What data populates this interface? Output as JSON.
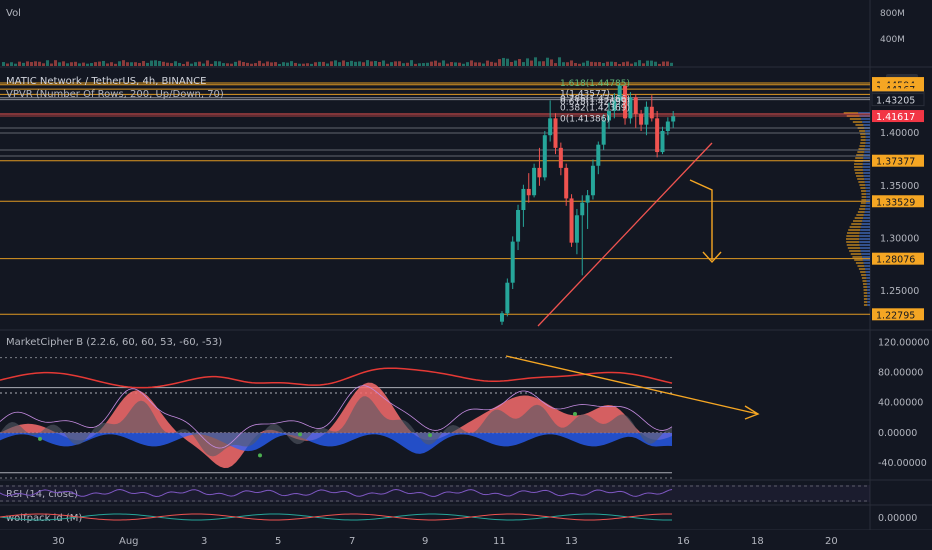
{
  "vol_pane": {
    "label": "Vol",
    "ticks": [
      "800M",
      "400M"
    ]
  },
  "main_pane": {
    "title": "MATIC Network / TetherUS, 4h, BINANCE",
    "indicator": "VPVR (Number Of Rows, 200, Up/Down, 70)",
    "currency_badge": "USDT",
    "price_ticks": [
      "1.40000",
      "1.35000",
      "1.30000",
      "1.25000"
    ],
    "price_tags": [
      {
        "text": "1.44753",
        "price": 1.4475,
        "color": "#f5a623",
        "text_color": "#131722"
      },
      {
        "text": "1.44594",
        "price": 1.4459,
        "color": "#f5a623",
        "text_color": "#131722"
      },
      {
        "text": "1.44167",
        "price": 1.4417,
        "color": "#f5a623",
        "text_color": "#131722"
      },
      {
        "text": "1.43696",
        "price": 1.4368,
        "color": "#f5a623",
        "text_color": "#131722"
      },
      {
        "text": "1.43367",
        "price": 1.4335,
        "color": "#131722",
        "text_color": "#d1d4dc"
      },
      {
        "text": "1.43205",
        "price": 1.4318,
        "color": "#131722",
        "text_color": "#d1d4dc"
      },
      {
        "text": "1.41617",
        "price": 1.4162,
        "color": "#f23645",
        "text_color": "#ffffff"
      },
      {
        "text": "1.37377",
        "price": 1.3738,
        "color": "#f5a623",
        "text_color": "#131722"
      },
      {
        "text": "1.33529",
        "price": 1.3353,
        "color": "#f5a623",
        "text_color": "#131722"
      },
      {
        "text": "1.28076",
        "price": 1.2808,
        "color": "#f5a623",
        "text_color": "#131722"
      },
      {
        "text": "1.22795",
        "price": 1.228,
        "color": "#f5a623",
        "text_color": "#131722"
      }
    ],
    "fib_labels": [
      {
        "text": "1.618(1.44785)",
        "price": 1.4475,
        "color": "#5fb87a"
      },
      {
        "text": "1(1.43577)",
        "price": 1.4378,
        "color": "#d1d4dc"
      },
      {
        "text": "0.786(1.43166)",
        "price": 1.433,
        "color": "#d1d4dc"
      },
      {
        "text": "0.618(1.42699)",
        "price": 1.43,
        "color": "#d1d4dc"
      },
      {
        "text": "0.382(1.42369)",
        "price": 1.4245,
        "color": "#d1d4dc"
      },
      {
        "text": "0(1.41386)",
        "price": 1.414,
        "color": "#d1d4dc"
      }
    ]
  },
  "market_cipher": {
    "title": "MarketCipher B (2.2.6, 60, 60, 53, -60, -53)",
    "ticks": [
      "120.00000",
      "80.00000",
      "40.00000",
      "0.00000",
      "-40.00000"
    ]
  },
  "rsi": {
    "title": "RSI (14, close)"
  },
  "wolfpack": {
    "title": "wolfpack id (M)",
    "tick": "0.00000"
  },
  "time_axis": [
    "30",
    "Aug",
    "3",
    "5",
    "7",
    "9",
    "11",
    "13",
    "16",
    "18",
    "20"
  ],
  "colors": {
    "up": "#26a69a",
    "down": "#ef5350",
    "orange": "#f5a623",
    "bg": "#131722"
  },
  "chart_data": {
    "type": "candlestick",
    "title": "MATIC Network / TetherUS, 4h, BINANCE",
    "x_axis": [
      "30",
      "Aug",
      "3",
      "5",
      "7",
      "9",
      "11",
      "13",
      "16",
      "18",
      "20"
    ],
    "y_range_main": [
      1.215,
      1.458
    ],
    "candles": [
      [
        1.221,
        1.231,
        1.218,
        1.229
      ],
      [
        1.229,
        1.262,
        1.226,
        1.258
      ],
      [
        1.258,
        1.302,
        1.252,
        1.297
      ],
      [
        1.297,
        1.332,
        1.289,
        1.327
      ],
      [
        1.327,
        1.351,
        1.311,
        1.347
      ],
      [
        1.347,
        1.362,
        1.334,
        1.341
      ],
      [
        1.341,
        1.371,
        1.339,
        1.367
      ],
      [
        1.367,
        1.386,
        1.35,
        1.358
      ],
      [
        1.358,
        1.402,
        1.355,
        1.398
      ],
      [
        1.398,
        1.431,
        1.392,
        1.414
      ],
      [
        1.414,
        1.419,
        1.38,
        1.386
      ],
      [
        1.386,
        1.391,
        1.36,
        1.367
      ],
      [
        1.367,
        1.371,
        1.331,
        1.338
      ],
      [
        1.338,
        1.342,
        1.292,
        1.296
      ],
      [
        1.296,
        1.328,
        1.285,
        1.322
      ],
      [
        1.322,
        1.341,
        1.265,
        1.334
      ],
      [
        1.334,
        1.346,
        1.309,
        1.341
      ],
      [
        1.341,
        1.375,
        1.337,
        1.369
      ],
      [
        1.369,
        1.392,
        1.361,
        1.389
      ],
      [
        1.389,
        1.418,
        1.384,
        1.412
      ],
      [
        1.412,
        1.429,
        1.404,
        1.421
      ],
      [
        1.421,
        1.438,
        1.414,
        1.431
      ],
      [
        1.431,
        1.448,
        1.421,
        1.445
      ],
      [
        1.445,
        1.447,
        1.408,
        1.414
      ],
      [
        1.414,
        1.439,
        1.409,
        1.434
      ],
      [
        1.434,
        1.437,
        1.405,
        1.418
      ],
      [
        1.418,
        1.422,
        1.402,
        1.408
      ],
      [
        1.408,
        1.43,
        1.398,
        1.425
      ],
      [
        1.425,
        1.436,
        1.411,
        1.414
      ],
      [
        1.414,
        1.421,
        1.377,
        1.382
      ],
      [
        1.382,
        1.406,
        1.38,
        1.402
      ],
      [
        1.402,
        1.415,
        1.398,
        1.411
      ],
      [
        1.411,
        1.421,
        1.405,
        1.416
      ]
    ],
    "horizontal_levels": [
      1.4475,
      1.4417,
      1.4368,
      1.4335,
      1.4318,
      1.4162,
      1.3738,
      1.3353,
      1.2808,
      1.228
    ],
    "market_cipher_range": [
      -60,
      130
    ],
    "market_cipher_levels": [
      100,
      60,
      53,
      0,
      -53,
      -60
    ]
  }
}
